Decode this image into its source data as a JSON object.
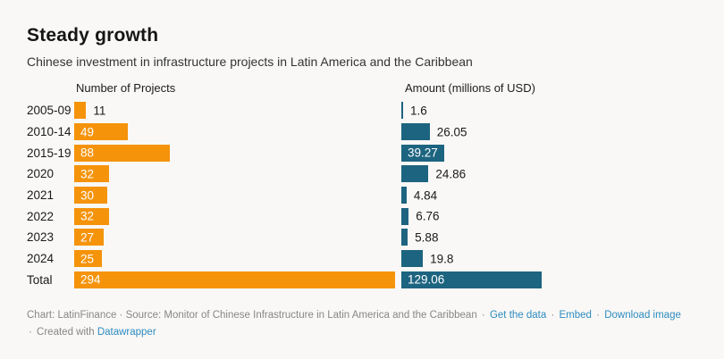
{
  "header": {
    "title": "Steady growth",
    "subtitle": "Chinese investment in infrastructure projects in Latin America and the Caribbean"
  },
  "chart_data": {
    "type": "bar",
    "orientation": "horizontal",
    "title": "Steady growth",
    "subtitle": "Chinese investment in infrastructure projects in Latin America and the Caribbean",
    "grid": false,
    "value_labels": true,
    "columns": [
      {
        "key": "projects",
        "label": "Number of Projects",
        "color": "#f5930b"
      },
      {
        "key": "amount",
        "label": "Amount (millions of USD)",
        "color": "#1d6480"
      }
    ],
    "categories": [
      "2005-09",
      "2010-14",
      "2015-19",
      "2020",
      "2021",
      "2022",
      "2023",
      "2024",
      "Total"
    ],
    "series": [
      {
        "name": "Number of Projects",
        "values": [
          11,
          49,
          88,
          32,
          30,
          32,
          27,
          25,
          294
        ]
      },
      {
        "name": "Amount (millions of USD)",
        "values": [
          1.6,
          26.05,
          39.27,
          24.86,
          4.84,
          6.76,
          5.88,
          19.8,
          129.06
        ]
      }
    ],
    "rows": [
      {
        "period": "2005-09",
        "projects": "11",
        "amount": "1.6"
      },
      {
        "period": "2010-14",
        "projects": "49",
        "amount": "26.05"
      },
      {
        "period": "2015-19",
        "projects": "88",
        "amount": "39.27"
      },
      {
        "period": "2020",
        "projects": "32",
        "amount": "24.86"
      },
      {
        "period": "2021",
        "projects": "30",
        "amount": "4.84"
      },
      {
        "period": "2022",
        "projects": "32",
        "amount": "6.76"
      },
      {
        "period": "2023",
        "projects": "27",
        "amount": "5.88"
      },
      {
        "period": "2024",
        "projects": "25",
        "amount": "19.8"
      },
      {
        "period": "Total",
        "projects": "294",
        "amount": "129.06"
      }
    ]
  },
  "colors": {
    "background": "#f9f8f6",
    "projects_bar": "#f5930b",
    "amount_bar": "#1d6480",
    "link": "#2e8bc0",
    "footer_text": "#878787"
  },
  "footer": {
    "prefix": "Chart: LatinFinance · Source: Monitor of Chinese Infrastructure in Latin America and the Caribbean",
    "sep": "·",
    "links": {
      "get_data": "Get the data",
      "embed": "Embed",
      "download": "Download image",
      "datawrapper": "Datawrapper"
    },
    "created_with": "Created with"
  }
}
